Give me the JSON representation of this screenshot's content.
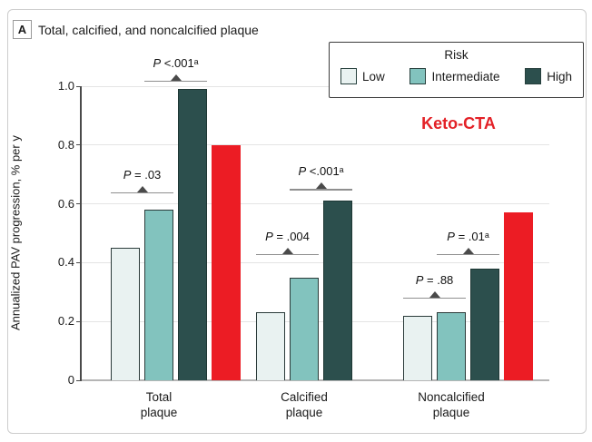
{
  "panel": {
    "label": "A",
    "title": "Total, calcified, and noncalcified plaque"
  },
  "legend": {
    "title": "Risk",
    "items": [
      {
        "label": "Low",
        "color": "#e9f2f1"
      },
      {
        "label": "Intermediate",
        "color": "#82c3be"
      },
      {
        "label": "High",
        "color": "#2c4f4d"
      }
    ]
  },
  "keto_label": {
    "text": "Keto-CTA",
    "color": "#e32127"
  },
  "chart_data": {
    "type": "bar",
    "title": "Total, calcified, and noncalcified plaque",
    "xlabel": "",
    "ylabel": "Annualized PAV progression, % per y",
    "ylim": [
      0,
      1.0
    ],
    "yticks": [
      0,
      0.2,
      0.4,
      0.6,
      0.8,
      1.0
    ],
    "grid": true,
    "legend_position": "top-right",
    "categories": [
      "Total plaque",
      "Calcified plaque",
      "Noncalcified plaque"
    ],
    "series": [
      {
        "name": "Low",
        "color": "#e9f2f1",
        "border": "#2b3b3a",
        "values": [
          0.45,
          0.23,
          0.22
        ]
      },
      {
        "name": "Intermediate",
        "color": "#82c3be",
        "border": "#2b3b3a",
        "values": [
          0.58,
          0.35,
          0.23
        ]
      },
      {
        "name": "High",
        "color": "#2c4f4d",
        "border": "#1e3734",
        "values": [
          0.99,
          0.61,
          0.38
        ]
      },
      {
        "name": "Keto-CTA",
        "color": "#ec1c24",
        "border": null,
        "values": [
          0.8,
          null,
          0.57
        ]
      }
    ],
    "annotations": [
      {
        "group": 0,
        "label": "P = .03",
        "span": [
          0,
          1
        ],
        "line_y": 0.64
      },
      {
        "group": 0,
        "label": "P <.001ᵃ",
        "span": [
          1,
          2
        ],
        "line_y": 1.02
      },
      {
        "group": 1,
        "label": "P = .004",
        "span": [
          0,
          1
        ],
        "line_y": 0.43
      },
      {
        "group": 1,
        "label": "P <.001ᵃ",
        "span": [
          1,
          2
        ],
        "line_y": 0.65
      },
      {
        "group": 2,
        "label": "P = .88",
        "span": [
          0,
          1
        ],
        "line_y": 0.28
      },
      {
        "group": 2,
        "label": "P = .01ᵃ",
        "span": [
          1,
          2
        ],
        "line_y": 0.43
      }
    ]
  }
}
